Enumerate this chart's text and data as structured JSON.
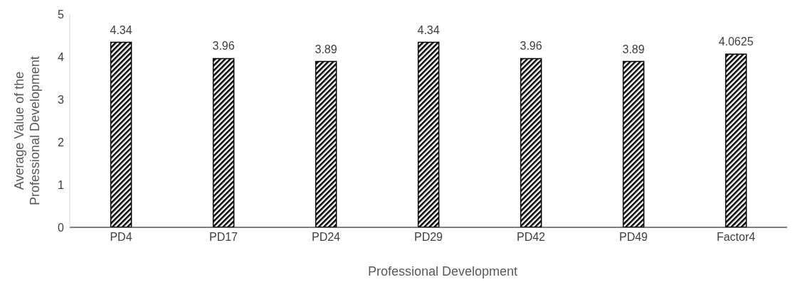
{
  "chart_data": {
    "type": "bar",
    "xlabel": "Professional Development",
    "ylabel": "Average Value of the Professional Development",
    "categories": [
      "PD4",
      "PD17",
      "PD24",
      "PD29",
      "PD42",
      "PD49",
      "Factor4"
    ],
    "values": [
      4.34,
      3.96,
      3.89,
      4.34,
      3.96,
      3.89,
      4.0625
    ],
    "color": "#000000",
    "ylim": [
      0,
      5
    ],
    "yticks": [
      0,
      1,
      2,
      3,
      4,
      5
    ],
    "grid": false,
    "data_labels": true
  }
}
